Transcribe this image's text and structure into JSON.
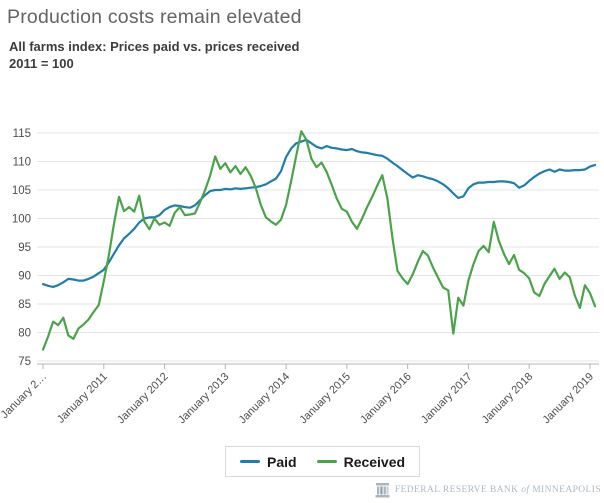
{
  "header": {
    "title": "Production costs remain elevated",
    "subtitle_line1": "All farms index: Prices paid vs. prices received",
    "subtitle_line2": "2011 = 100"
  },
  "chart_data": {
    "type": "line",
    "title": "All farms index: Prices paid vs. prices received, 2011 = 100",
    "grid": "horizontal",
    "legend_position": "bottom-center",
    "x_start_month": "January 2010",
    "x_end_month": "February 2019",
    "x_tick_labels": [
      "January 2…",
      "January 2011",
      "January 2012",
      "January 2013",
      "January 2014",
      "January 2015",
      "January 2016",
      "January 2017",
      "January 2018",
      "January 2019"
    ],
    "y_ticks": [
      75,
      80,
      85,
      90,
      95,
      100,
      105,
      110,
      115
    ],
    "ylim": [
      75,
      116
    ],
    "series": [
      {
        "name": "Paid",
        "color": "#1f7eab",
        "values": [
          88.5,
          88.2,
          88.0,
          88.3,
          88.8,
          89.4,
          89.3,
          89.1,
          89.1,
          89.4,
          89.8,
          90.4,
          91.0,
          92.3,
          93.8,
          95.3,
          96.5,
          97.3,
          98.2,
          99.3,
          100.0,
          100.2,
          100.2,
          100.6,
          101.5,
          102.0,
          102.3,
          102.2,
          102.0,
          101.9,
          102.3,
          103.2,
          104.1,
          104.8,
          105.0,
          105.0,
          105.2,
          105.1,
          105.3,
          105.2,
          105.3,
          105.4,
          105.5,
          105.7,
          106.0,
          106.5,
          107.0,
          108.3,
          110.8,
          112.3,
          113.2,
          113.5,
          113.8,
          113.2,
          112.6,
          112.3,
          112.7,
          112.4,
          112.3,
          112.1,
          112.0,
          112.2,
          111.8,
          111.6,
          111.5,
          111.3,
          111.1,
          111.0,
          110.5,
          109.8,
          109.2,
          108.5,
          107.8,
          107.2,
          107.6,
          107.4,
          107.1,
          106.9,
          106.5,
          106.0,
          105.3,
          104.4,
          103.6,
          103.9,
          105.3,
          106.0,
          106.3,
          106.3,
          106.4,
          106.4,
          106.5,
          106.5,
          106.4,
          106.2,
          105.4,
          105.8,
          106.6,
          107.3,
          107.9,
          108.3,
          108.6,
          108.2,
          108.6,
          108.4,
          108.4,
          108.5,
          108.5,
          108.6,
          109.1,
          109.4
        ]
      },
      {
        "name": "Received",
        "color": "#4aa34a",
        "values": [
          77.0,
          79.3,
          81.9,
          81.3,
          82.6,
          79.5,
          78.9,
          80.7,
          81.4,
          82.3,
          83.6,
          84.8,
          89.0,
          93.5,
          99.0,
          103.8,
          101.3,
          102.0,
          101.2,
          104.0,
          99.5,
          98.1,
          100.0,
          98.9,
          99.3,
          98.7,
          101.0,
          102.0,
          100.6,
          100.7,
          100.9,
          102.8,
          105.0,
          107.5,
          110.9,
          108.7,
          109.7,
          108.1,
          109.2,
          107.8,
          109.0,
          107.5,
          105.4,
          102.4,
          100.2,
          99.5,
          98.9,
          99.8,
          102.4,
          106.6,
          111.0,
          115.3,
          113.8,
          110.5,
          109.0,
          109.8,
          108.2,
          105.9,
          103.5,
          101.7,
          101.2,
          99.4,
          98.2,
          100.0,
          102.0,
          103.8,
          105.8,
          107.6,
          103.5,
          96.5,
          90.8,
          89.5,
          88.5,
          90.2,
          92.4,
          94.3,
          93.5,
          91.4,
          89.6,
          87.9,
          87.4,
          79.8,
          86.1,
          84.7,
          89.1,
          92.0,
          94.3,
          95.2,
          94.1,
          99.4,
          96.1,
          93.8,
          92.0,
          93.6,
          91.0,
          90.4,
          89.5,
          87.0,
          86.4,
          88.5,
          89.9,
          91.2,
          89.4,
          90.5,
          89.7,
          86.5,
          84.3,
          88.3,
          86.9,
          84.6
        ]
      }
    ]
  },
  "legend": {
    "items": [
      {
        "label": "Paid",
        "color": "#1f7eab"
      },
      {
        "label": "Received",
        "color": "#4aa34a"
      }
    ]
  },
  "footer": {
    "part1": "FEDERAL RESERVE BANK",
    "of": "of",
    "part2": "MINNEAPOLIS"
  },
  "colors": {
    "gridline": "#e4e4e4",
    "axis": "#b5b5b5",
    "tick_label": "#4d4d4d"
  }
}
